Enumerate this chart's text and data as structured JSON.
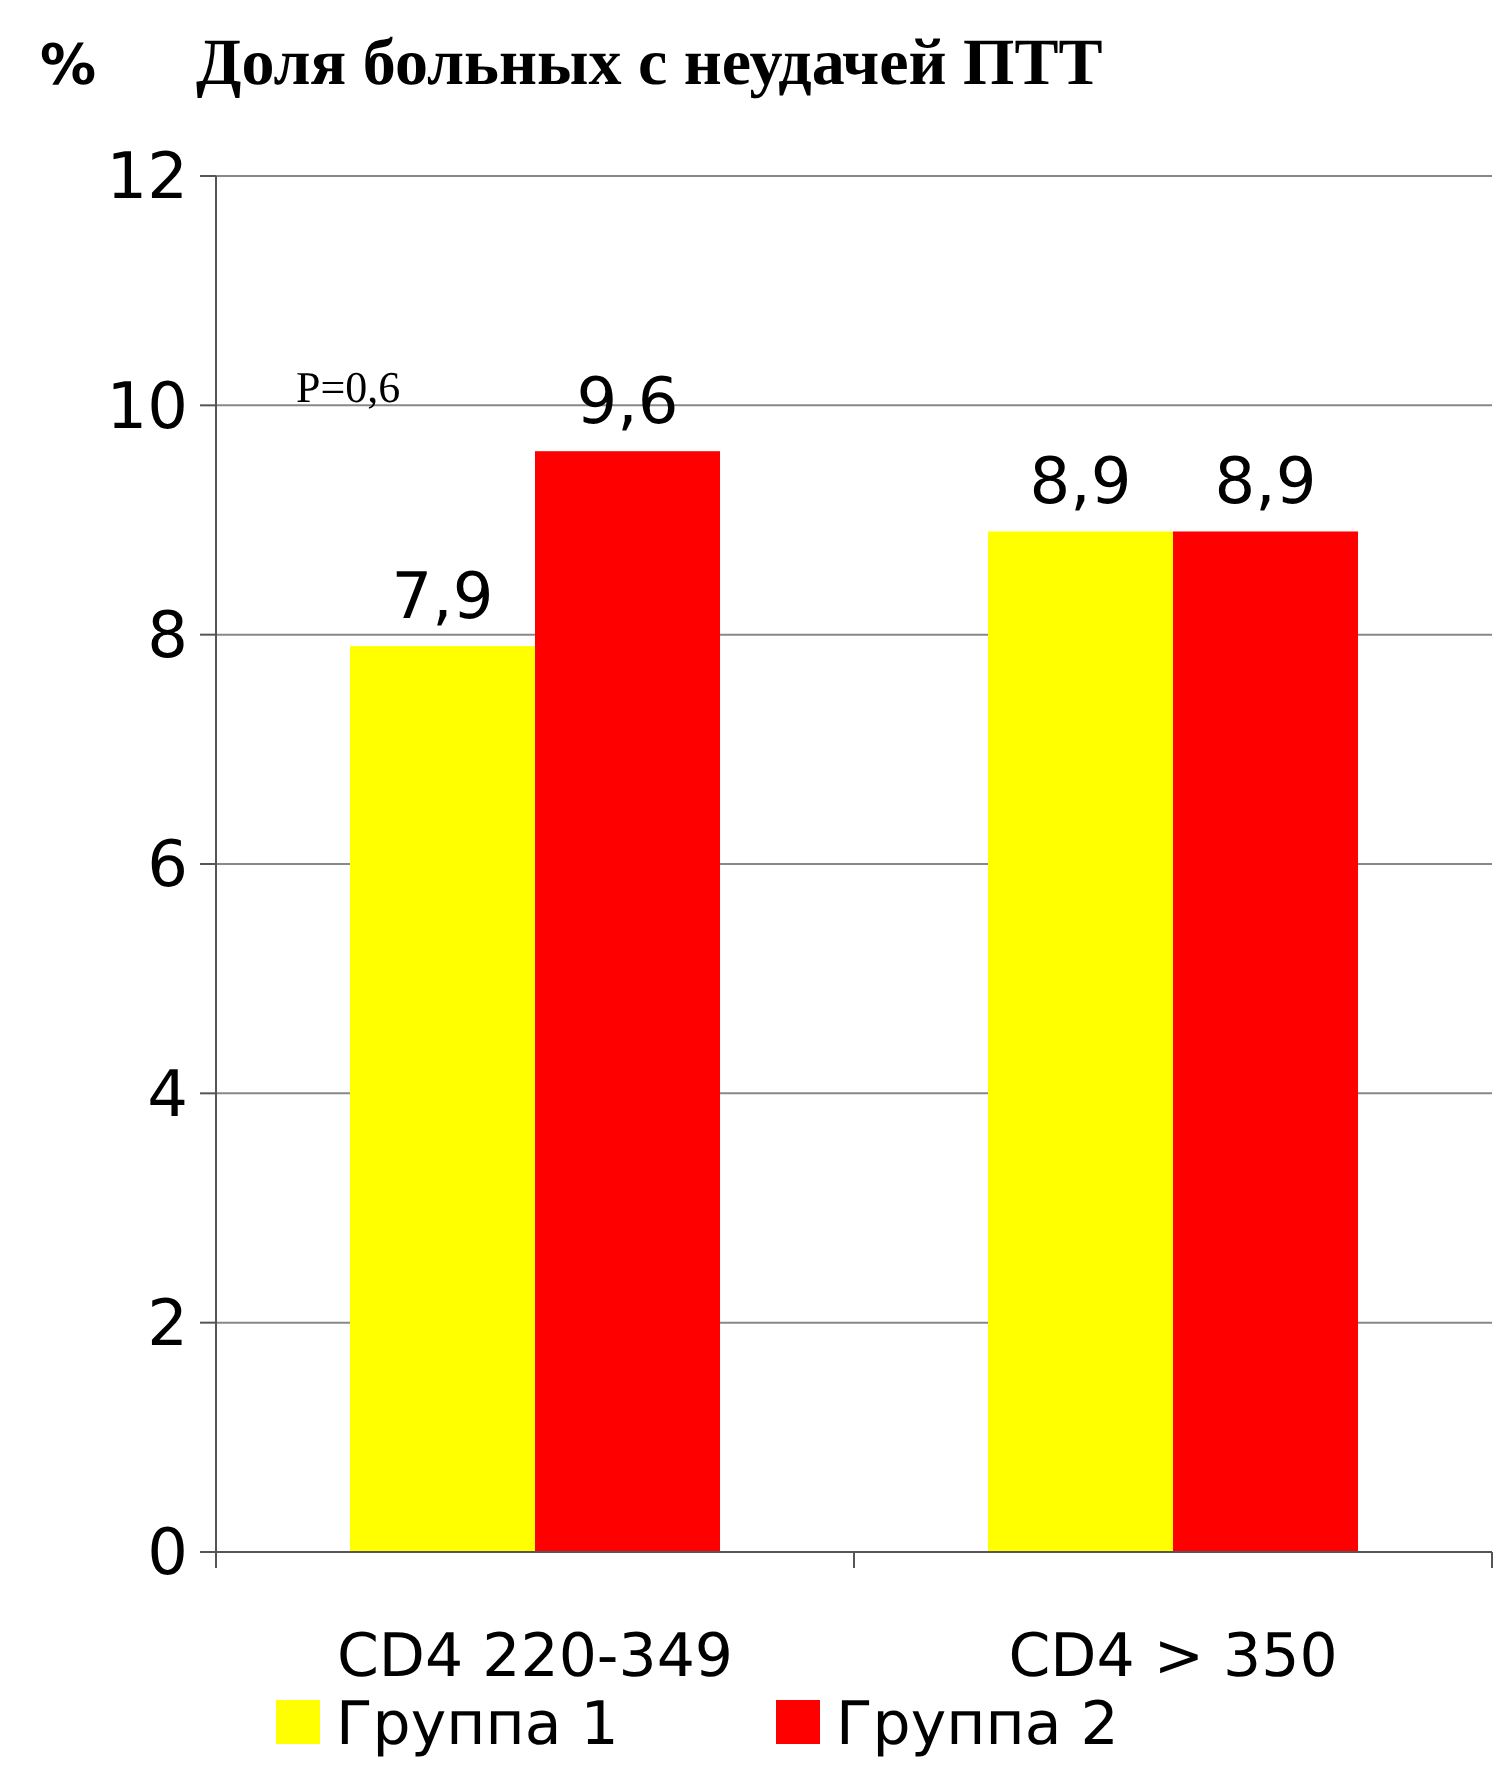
{
  "chart_data": {
    "type": "bar",
    "title": "Доля больных с неудачей ПТТ",
    "ylabel": "%",
    "categories": [
      "CD4 220-349",
      "CD4 > 350"
    ],
    "series": [
      {
        "name": "Группа 1",
        "color": "#ffff00",
        "values": [
          7.9,
          8.9
        ],
        "value_labels": [
          "7,9",
          "8,9"
        ]
      },
      {
        "name": "Группа 2",
        "color": "#ff0000",
        "values": [
          9.6,
          8.9
        ],
        "value_labels": [
          "9,6",
          "8,9"
        ]
      }
    ],
    "ylim": [
      0,
      12
    ],
    "yticks": [
      0,
      2,
      4,
      6,
      8,
      10,
      12
    ],
    "grid": "y",
    "legend": "bottom",
    "annotations": [
      "P=0,6"
    ]
  }
}
